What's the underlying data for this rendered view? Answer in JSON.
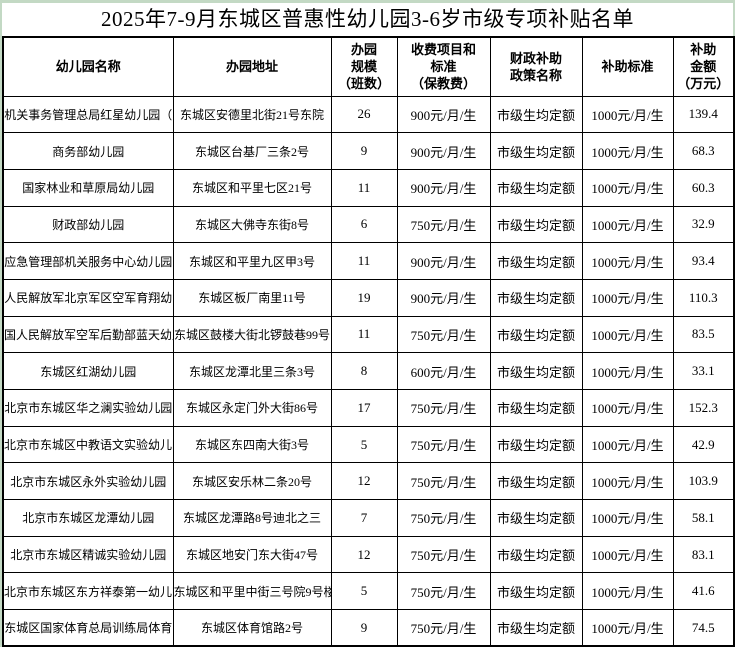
{
  "title": "2025年7-9月东城区普惠性幼儿园3-6岁市级专项补贴名单",
  "colors": {
    "page_background": "#c3d9c4",
    "table_background": "#ffffff",
    "border": "#000000",
    "text": "#000000"
  },
  "table": {
    "columns": [
      {
        "label": "幼儿园名称"
      },
      {
        "label": "办园地址"
      },
      {
        "label": "办园\n规模\n（班数）"
      },
      {
        "label": "收费项目和\n标准\n（保教费）"
      },
      {
        "label": "财政补助\n政策名称"
      },
      {
        "label": "补助标准"
      },
      {
        "label": "补助\n金额\n（万元）"
      }
    ],
    "rows": [
      [
        "机关事务管理总局红星幼儿园（",
        "东城区安德里北街21号东院",
        "26",
        "900元/月/生",
        "市级生均定额",
        "1000元/月/生",
        "139.4"
      ],
      [
        "商务部幼儿园",
        "东城区台基厂三条2号",
        "9",
        "900元/月/生",
        "市级生均定额",
        "1000元/月/生",
        "68.3"
      ],
      [
        "国家林业和草原局幼儿园",
        "东城区和平里七区21号",
        "11",
        "900元/月/生",
        "市级生均定额",
        "1000元/月/生",
        "60.3"
      ],
      [
        "财政部幼儿园",
        "东城区大佛寺东街8号",
        "6",
        "750元/月/生",
        "市级生均定额",
        "1000元/月/生",
        "32.9"
      ],
      [
        "应急管理部机关服务中心幼儿园",
        "东城区和平里九区甲3号",
        "11",
        "900元/月/生",
        "市级生均定额",
        "1000元/月/生",
        "93.4"
      ],
      [
        "人民解放军北京军区空军育翔幼",
        "东城区板厂南里11号",
        "19",
        "900元/月/生",
        "市级生均定额",
        "1000元/月/生",
        "110.3"
      ],
      [
        "国人民解放军空军后勤部蓝天幼儿",
        "东城区鼓楼大街北锣鼓巷99号",
        "11",
        "750元/月/生",
        "市级生均定额",
        "1000元/月/生",
        "83.5"
      ],
      [
        "东城区红湖幼儿园",
        "东城区龙潭北里三条3号",
        "8",
        "600元/月/生",
        "市级生均定额",
        "1000元/月/生",
        "33.1"
      ],
      [
        "北京市东城区华之澜实验幼儿园",
        "东城区永定门外大街86号",
        "17",
        "750元/月/生",
        "市级生均定额",
        "1000元/月/生",
        "152.3"
      ],
      [
        "北京市东城区中教语文实验幼儿园",
        "东城区东四南大街3号",
        "5",
        "750元/月/生",
        "市级生均定额",
        "1000元/月/生",
        "42.9"
      ],
      [
        "北京市东城区永外实验幼儿园",
        "东城区安乐林二条20号",
        "12",
        "750元/月/生",
        "市级生均定额",
        "1000元/月/生",
        "103.9"
      ],
      [
        "北京市东城区龙潭幼儿园",
        "东城区龙潭路8号迪北之三",
        "7",
        "750元/月/生",
        "市级生均定额",
        "1000元/月/生",
        "58.1"
      ],
      [
        "北京市东城区精诚实验幼儿园",
        "东城区地安门东大街47号",
        "12",
        "750元/月/生",
        "市级生均定额",
        "1000元/月/生",
        "83.1"
      ],
      [
        "北京市东城区东方祥泰第一幼儿园",
        "东城区和平里中街三号院9号楼",
        "5",
        "750元/月/生",
        "市级生均定额",
        "1000元/月/生",
        "41.6"
      ],
      [
        "东城区国家体育总局训练局体育",
        "东城区体育馆路2号",
        "9",
        "750元/月/生",
        "市级生均定额",
        "1000元/月/生",
        "74.5"
      ]
    ]
  }
}
